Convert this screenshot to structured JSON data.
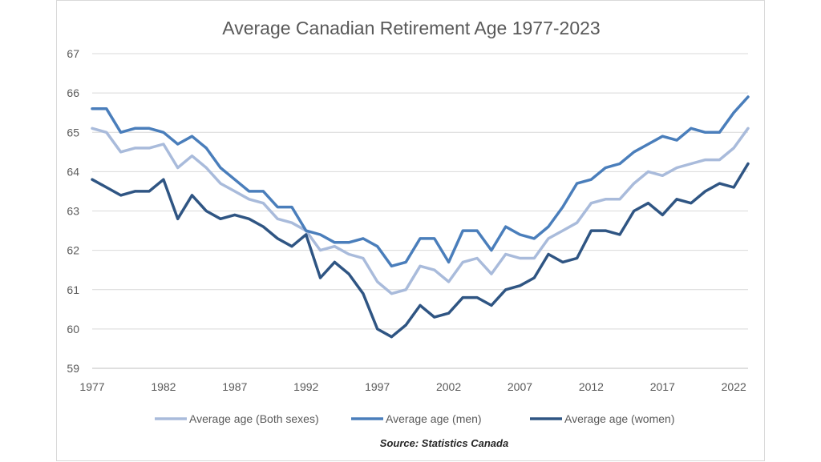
{
  "chart_data": {
    "type": "line",
    "title": "Average Canadian Retirement Age 1977-2023",
    "source": "Source: Statistics Canada",
    "xlabel": "",
    "ylabel": "",
    "ylim": [
      59,
      67
    ],
    "xlim": [
      1977,
      2023
    ],
    "y_ticks": [
      "59",
      "60",
      "61",
      "62",
      "63",
      "64",
      "65",
      "66",
      "67"
    ],
    "x_ticks": [
      "1977",
      "1982",
      "1987",
      "1992",
      "1997",
      "2002",
      "2007",
      "2012",
      "2017",
      "2022"
    ],
    "grid": "horizontal",
    "legend_position": "bottom",
    "x": [
      1977,
      1978,
      1979,
      1980,
      1981,
      1982,
      1983,
      1984,
      1985,
      1986,
      1987,
      1988,
      1989,
      1990,
      1991,
      1992,
      1993,
      1994,
      1995,
      1996,
      1997,
      1998,
      1999,
      2000,
      2001,
      2002,
      2003,
      2004,
      2005,
      2006,
      2007,
      2008,
      2009,
      2010,
      2011,
      2012,
      2013,
      2014,
      2015,
      2016,
      2017,
      2018,
      2019,
      2020,
      2021,
      2022,
      2023
    ],
    "series": [
      {
        "name": "Average age (Both sexes)",
        "color": "#a9bbdb",
        "values": [
          65.1,
          65.0,
          64.5,
          64.6,
          64.6,
          64.7,
          64.1,
          64.4,
          64.1,
          63.7,
          63.5,
          63.3,
          63.2,
          62.8,
          62.7,
          62.5,
          62.0,
          62.1,
          61.9,
          61.8,
          61.2,
          60.9,
          61.0,
          61.6,
          61.5,
          61.2,
          61.7,
          61.8,
          61.4,
          61.9,
          61.8,
          61.8,
          62.3,
          62.5,
          62.7,
          63.2,
          63.3,
          63.3,
          63.7,
          64.0,
          63.9,
          64.1,
          64.2,
          64.3,
          64.3,
          64.6,
          65.1
        ]
      },
      {
        "name": "Average age (men)",
        "color": "#4a7ebb",
        "values": [
          65.6,
          65.6,
          65.0,
          65.1,
          65.1,
          65.0,
          64.7,
          64.9,
          64.6,
          64.1,
          63.8,
          63.5,
          63.5,
          63.1,
          63.1,
          62.5,
          62.4,
          62.2,
          62.2,
          62.3,
          62.1,
          61.6,
          61.7,
          62.3,
          62.3,
          61.7,
          62.5,
          62.5,
          62.0,
          62.6,
          62.4,
          62.3,
          62.6,
          63.1,
          63.7,
          63.8,
          64.1,
          64.2,
          64.5,
          64.7,
          64.9,
          64.8,
          65.1,
          65.0,
          65.0,
          65.5,
          65.9
        ]
      },
      {
        "name": "Average age (women)",
        "color": "#2f5583",
        "values": [
          63.8,
          63.6,
          63.4,
          63.5,
          63.5,
          63.8,
          62.8,
          63.4,
          63.0,
          62.8,
          62.9,
          62.8,
          62.6,
          62.3,
          62.1,
          62.4,
          61.3,
          61.7,
          61.4,
          60.9,
          60.0,
          59.8,
          60.1,
          60.6,
          60.3,
          60.4,
          60.8,
          60.8,
          60.6,
          61.0,
          61.1,
          61.3,
          61.9,
          61.7,
          61.8,
          62.5,
          62.5,
          62.4,
          63.0,
          63.2,
          62.9,
          63.3,
          63.2,
          63.5,
          63.7,
          63.6,
          64.2
        ]
      }
    ]
  }
}
